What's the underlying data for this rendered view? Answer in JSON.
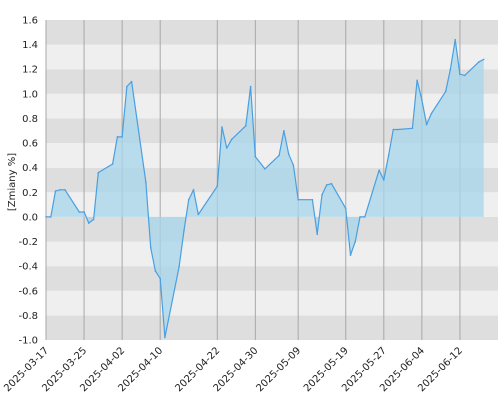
{
  "chart_data": {
    "type": "area",
    "title": "",
    "xlabel": "",
    "ylabel": "[Zmiany %]",
    "ylim": [
      -1.0,
      1.6
    ],
    "xlim": [
      "2025-03-17",
      "2025-06-20"
    ],
    "grid": true,
    "legend": "none",
    "y_ticks": [
      "-1.0",
      "-0.8",
      "-0.6",
      "-0.4",
      "-0.2",
      "0.0",
      "0.2",
      "0.4",
      "0.6",
      "0.8",
      "1.0",
      "1.2",
      "1.4",
      "1.6"
    ],
    "x_ticks": [
      "2025-03-17",
      "2025-03-25",
      "2025-04-02",
      "2025-04-10",
      "2025-04-22",
      "2025-04-30",
      "2025-05-09",
      "2025-05-19",
      "2025-05-27",
      "2025-06-04",
      "2025-06-12"
    ],
    "colors": {
      "line": "#4a9fe0",
      "fill": "#a6d5ea",
      "band_dark": "#dedede",
      "band_light": "#efefef",
      "grid_vertical": "#a8a8a8"
    },
    "series": [
      {
        "values": [
          [
            "2025-03-17",
            0.0
          ],
          [
            "2025-03-18",
            0.0
          ],
          [
            "2025-03-19",
            0.21
          ],
          [
            "2025-03-20",
            0.22
          ],
          [
            "2025-03-21",
            0.22
          ],
          [
            "2025-03-24",
            0.04
          ],
          [
            "2025-03-25",
            0.04
          ],
          [
            "2025-03-26",
            -0.05
          ],
          [
            "2025-03-27",
            -0.02
          ],
          [
            "2025-03-28",
            0.36
          ],
          [
            "2025-03-31",
            0.43
          ],
          [
            "2025-04-01",
            0.65
          ],
          [
            "2025-04-02",
            0.65
          ],
          [
            "2025-04-03",
            1.06
          ],
          [
            "2025-04-04",
            1.1
          ],
          [
            "2025-04-07",
            0.28
          ],
          [
            "2025-04-08",
            -0.25
          ],
          [
            "2025-04-09",
            -0.44
          ],
          [
            "2025-04-10",
            -0.5
          ],
          [
            "2025-04-11",
            -0.98
          ],
          [
            "2025-04-14",
            -0.4
          ],
          [
            "2025-04-15",
            -0.11
          ],
          [
            "2025-04-16",
            0.14
          ],
          [
            "2025-04-17",
            0.22
          ],
          [
            "2025-04-18",
            0.02
          ],
          [
            "2025-04-22",
            0.25
          ],
          [
            "2025-04-23",
            0.73
          ],
          [
            "2025-04-24",
            0.56
          ],
          [
            "2025-04-25",
            0.63
          ],
          [
            "2025-04-28",
            0.74
          ],
          [
            "2025-04-29",
            1.06
          ],
          [
            "2025-04-30",
            0.49
          ],
          [
            "2025-05-02",
            0.39
          ],
          [
            "2025-05-05",
            0.5
          ],
          [
            "2025-05-06",
            0.7
          ],
          [
            "2025-05-07",
            0.51
          ],
          [
            "2025-05-08",
            0.42
          ],
          [
            "2025-05-09",
            0.14
          ],
          [
            "2025-05-12",
            0.14
          ],
          [
            "2025-05-13",
            -0.14
          ],
          [
            "2025-05-14",
            0.18
          ],
          [
            "2025-05-15",
            0.26
          ],
          [
            "2025-05-16",
            0.27
          ],
          [
            "2025-05-19",
            0.07
          ],
          [
            "2025-05-20",
            -0.31
          ],
          [
            "2025-05-21",
            -0.2
          ],
          [
            "2025-05-22",
            0.0
          ],
          [
            "2025-05-23",
            0.0
          ],
          [
            "2025-05-26",
            0.38
          ],
          [
            "2025-05-27",
            0.3
          ],
          [
            "2025-05-28",
            0.5
          ],
          [
            "2025-05-29",
            0.71
          ],
          [
            "2025-05-30",
            0.71
          ],
          [
            "2025-06-02",
            0.72
          ],
          [
            "2025-06-03",
            1.11
          ],
          [
            "2025-06-04",
            0.95
          ],
          [
            "2025-06-05",
            0.75
          ],
          [
            "2025-06-06",
            0.84
          ],
          [
            "2025-06-09",
            1.02
          ],
          [
            "2025-06-10",
            1.2
          ],
          [
            "2025-06-11",
            1.44
          ],
          [
            "2025-06-12",
            1.16
          ],
          [
            "2025-06-13",
            1.15
          ],
          [
            "2025-06-16",
            1.26
          ],
          [
            "2025-06-17",
            1.28
          ]
        ]
      }
    ]
  }
}
